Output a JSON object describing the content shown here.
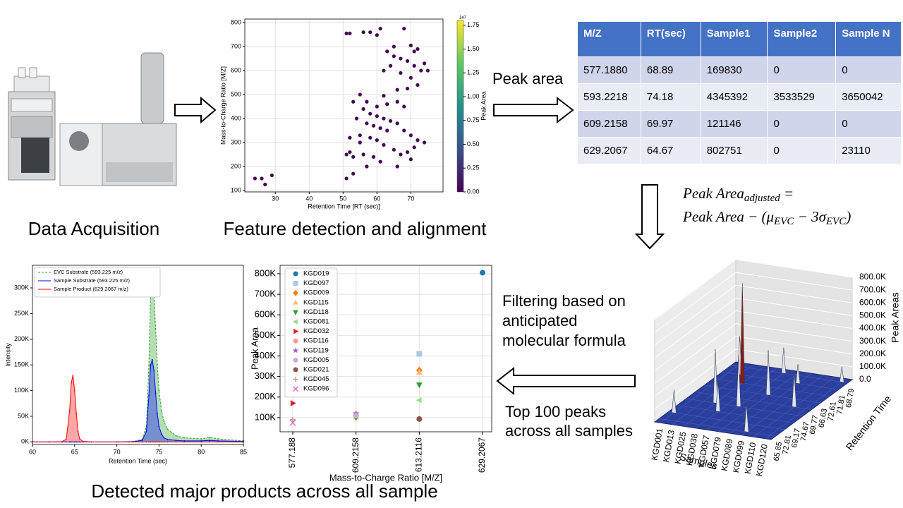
{
  "labels": {
    "data_acquisition": "Data Acquisition",
    "feature_detection": "Feature detection and alignment",
    "peak_area": "Peak area",
    "filtering": [
      "Filtering based on",
      "anticipated",
      "molecular formula"
    ],
    "top_peaks": [
      "Top 100 peaks",
      "across all samples"
    ],
    "detected": "Detected major products across all sample"
  },
  "formula": {
    "line1": [
      "Peak Area",
      "adjusted",
      " ="
    ],
    "line2": [
      "Peak Area − (μ",
      "EVC",
      " − 3σ",
      "EVC",
      ")"
    ]
  },
  "table": {
    "header": [
      "M/Z",
      "RT(sec)",
      "Sample1",
      "Sample2",
      "Sample N"
    ],
    "rows": [
      [
        "577.1880",
        "68.89",
        "169830",
        "0",
        "0"
      ],
      [
        "593.2218",
        "74.18",
        "4345392",
        "3533529",
        "3650042"
      ],
      [
        "609.2158",
        "69.97",
        "121146",
        "0",
        "0"
      ],
      [
        "629.2067",
        "64.67",
        "802751",
        "0",
        "23110"
      ]
    ]
  },
  "chart_data": [
    {
      "type": "scatter",
      "x_label": "Retention Time [RT (sec)]",
      "y_label": "Mass-to-Charge Ratio [M/Z]",
      "x": [
        24,
        26,
        27,
        29,
        51,
        52,
        56,
        58,
        60,
        61,
        68,
        65,
        70,
        72,
        71,
        63,
        65,
        67,
        69,
        71,
        74,
        73,
        75,
        64,
        62,
        67,
        70,
        72,
        66,
        69,
        62,
        55,
        57,
        60,
        63,
        66,
        68,
        53,
        56,
        58,
        60,
        62,
        64,
        54,
        57,
        59,
        61,
        63,
        66,
        68,
        70,
        72,
        74,
        55,
        58,
        60,
        62,
        65,
        67,
        69,
        71,
        52,
        51,
        53,
        56,
        59,
        61,
        57,
        66,
        70,
        53,
        51,
        55,
        52
      ],
      "y": [
        150,
        150,
        125,
        163,
        755,
        755,
        760,
        760,
        748,
        775,
        775,
        700,
        705,
        690,
        680,
        680,
        660,
        650,
        640,
        620,
        630,
        600,
        600,
        620,
        600,
        590,
        570,
        540,
        520,
        525,
        495,
        500,
        470,
        450,
        460,
        470,
        450,
        470,
        440,
        420,
        410,
        400,
        390,
        400,
        380,
        370,
        360,
        350,
        380,
        350,
        330,
        310,
        300,
        330,
        320,
        310,
        290,
        270,
        250,
        260,
        280,
        260,
        250,
        240,
        250,
        240,
        220,
        200,
        200,
        230,
        170,
        150,
        300,
        320
      ],
      "color": "#440154",
      "xlim": [
        21,
        79.5
      ],
      "xticks": [
        30,
        40,
        50,
        60,
        70
      ],
      "ylim": [
        94,
        815
      ],
      "yticks": [
        100,
        200,
        300,
        400,
        500,
        600,
        700,
        800
      ],
      "grid": true,
      "colorbar": {
        "label": "Peak Area",
        "scale_label": "1e7",
        "lim": [
          0,
          1.8
        ],
        "ticks": [
          {
            "value": 0,
            "label": "0.00"
          },
          {
            "value": 0.25,
            "label": "0.25"
          },
          {
            "value": 0.5,
            "label": "0.50"
          },
          {
            "value": 0.75,
            "label": "0.75"
          },
          {
            "value": 1,
            "label": "1.00"
          },
          {
            "value": 1.25,
            "label": "1.25"
          },
          {
            "value": 1.5,
            "label": "1.50"
          },
          {
            "value": 1.75,
            "label": "1.75"
          }
        ],
        "colors": [
          "#440154",
          "#3b528b",
          "#21918c",
          "#5ec962",
          "#fde725"
        ]
      }
    },
    {
      "type": "line",
      "x_label": "Retention Time (sec)",
      "y_label": "Intensity",
      "x": [
        60,
        62,
        63.5,
        64,
        64.4,
        64.6,
        64.8,
        65,
        65.2,
        65.4,
        65.6,
        66,
        67,
        70,
        72,
        73,
        73.5,
        73.8,
        74,
        74.2,
        74.4,
        74.6,
        74.8,
        75,
        75.3,
        75.6,
        76,
        77,
        78,
        80,
        81,
        82,
        85
      ],
      "series": [
        {
          "name": "EVC Substrate (593.225 m/z)",
          "color": "#2ca02c",
          "dashed": true,
          "values": [
            0,
            0,
            0,
            0,
            0,
            0,
            0,
            0,
            0,
            0,
            0,
            0,
            0,
            0,
            1000,
            5000,
            30000,
            150000,
            290000,
            325000,
            290000,
            220000,
            150000,
            100000,
            60000,
            40000,
            25000,
            12000,
            8000,
            6000,
            9000,
            6000,
            2000
          ]
        },
        {
          "name": "Sample Substrate (593.225 m/z)",
          "color": "#0000ff",
          "dashed": false,
          "values": [
            0,
            0,
            0,
            0,
            0,
            0,
            0,
            0,
            0,
            0,
            0,
            0,
            0,
            0,
            500,
            3000,
            20000,
            90000,
            150000,
            160000,
            140000,
            95000,
            55000,
            30000,
            15000,
            8000,
            5000,
            3000,
            2000,
            2000,
            3000,
            2000,
            1000
          ]
        },
        {
          "name": "Sample Product (629.2067 m/z)",
          "color": "#ff0000",
          "dashed": false,
          "values": [
            0,
            0,
            500,
            5000,
            60000,
            115000,
            130000,
            100000,
            55000,
            20000,
            6000,
            1000,
            0,
            0,
            0,
            0,
            0,
            0,
            0,
            0,
            0,
            0,
            0,
            0,
            0,
            0,
            0,
            0,
            0,
            0,
            0,
            0,
            0
          ]
        }
      ],
      "xlim": [
        60,
        85
      ],
      "xticks": [
        60,
        65,
        70,
        75,
        80,
        85
      ],
      "ylim": [
        -5000,
        344000
      ],
      "yticks": [
        {
          "value": 0,
          "label": "0K"
        },
        {
          "value": 50000,
          "label": "50K"
        },
        {
          "value": 100000,
          "label": "100K"
        },
        {
          "value": 150000,
          "label": "150K"
        },
        {
          "value": 200000,
          "label": "200K"
        },
        {
          "value": 250000,
          "label": "250K"
        },
        {
          "value": 300000,
          "label": "300K"
        }
      ],
      "grid": false,
      "legend": "upper left"
    },
    {
      "type": "category-scatter",
      "x_label": "Mass-to-Charge Ratio [M/Z]",
      "y_label": "Peak Area",
      "categories": [
        "577.188",
        "609.2158",
        "613.2116",
        "629.2067"
      ],
      "series": [
        {
          "name": "KGD019",
          "color": "#1f77b4",
          "marker": "circle",
          "values": [
            null,
            null,
            null,
            805000
          ]
        },
        {
          "name": "KGD097",
          "color": "#aec7e8",
          "marker": "square",
          "values": [
            null,
            null,
            410000,
            null
          ]
        },
        {
          "name": "KGD009",
          "color": "#ff7f0e",
          "marker": "diamond",
          "values": [
            null,
            null,
            330000,
            null
          ]
        },
        {
          "name": "KGD115",
          "color": "#ffbb78",
          "marker": "triangle-up",
          "values": [
            null,
            105000,
            320000,
            null
          ]
        },
        {
          "name": "KGD118",
          "color": "#2ca02c",
          "marker": "triangle-down",
          "values": [
            null,
            100000,
            260000,
            null
          ]
        },
        {
          "name": "KGD081",
          "color": "#98df8a",
          "marker": "triangle-left",
          "values": [
            null,
            null,
            185000,
            null
          ]
        },
        {
          "name": "KGD032",
          "color": "#d62728",
          "marker": "triangle-right",
          "values": [
            170000,
            null,
            null,
            null
          ]
        },
        {
          "name": "KGD116",
          "color": "#ff9896",
          "marker": "circle",
          "values": [
            null,
            115000,
            null,
            null
          ]
        },
        {
          "name": "KGD119",
          "color": "#9467bd",
          "marker": "star",
          "values": [
            null,
            120000,
            null,
            null
          ]
        },
        {
          "name": "KGD005",
          "color": "#c5b0d5",
          "marker": "circle",
          "values": [
            null,
            110000,
            null,
            null
          ]
        },
        {
          "name": "KGD021",
          "color": "#8c564b",
          "marker": "circle",
          "values": [
            null,
            null,
            93000,
            null
          ]
        },
        {
          "name": "KGD045",
          "color": "#c49c94",
          "marker": "plus",
          "values": [
            90000,
            null,
            null,
            null
          ]
        },
        {
          "name": "KGD096",
          "color": "#e377c2",
          "marker": "x",
          "values": [
            75000,
            null,
            null,
            null
          ]
        }
      ],
      "ylim": [
        31000,
        841000
      ],
      "yticks": [
        {
          "value": 100000,
          "label": "100K"
        },
        {
          "value": 200000,
          "label": "200K"
        },
        {
          "value": 300000,
          "label": "300K"
        },
        {
          "value": 400000,
          "label": "400K"
        },
        {
          "value": 500000,
          "label": "500K"
        },
        {
          "value": 600000,
          "label": "600K"
        },
        {
          "value": 700000,
          "label": "700K"
        },
        {
          "value": 800000,
          "label": "800K"
        }
      ],
      "grid": true,
      "legend": "upper left"
    },
    {
      "type": "surface3d",
      "x_label": "Samples",
      "y_label": "Retention Time",
      "z_label": "Peak Areas",
      "samples": [
        "KGD001",
        "KGD013",
        "KGD025",
        "KGD038",
        "KGD057",
        "KGD079",
        "KGD089",
        "KGD099",
        "KGD110",
        "KGD120"
      ],
      "retention_times": [
        "65.85",
        "72.81",
        "69.17",
        "74.67",
        "69.77",
        "66.63",
        "72.61",
        "71.81",
        "68.79"
      ],
      "zlim": [
        0,
        800000
      ],
      "zticks": [
        {
          "value": 0,
          "label": "0.0"
        },
        {
          "value": 100000,
          "label": "100.0K"
        },
        {
          "value": 200000,
          "label": "200.0K"
        },
        {
          "value": 300000,
          "label": "300.0K"
        },
        {
          "value": 400000,
          "label": "400.0K"
        },
        {
          "value": 500000,
          "label": "500.0K"
        },
        {
          "value": 600000,
          "label": "600.0K"
        },
        {
          "value": 700000,
          "label": "700.0K"
        },
        {
          "value": 800000,
          "label": "800.0K"
        }
      ],
      "surface_color": "#2b3f9e",
      "peaks": {
        "sample": [
          "KGD013",
          "KGD025",
          "KGD025",
          "KGD038",
          "KGD057",
          "KGD079",
          "KGD089",
          "KGD099",
          "KGD110",
          "KGD001",
          "KGD057",
          "KGD120"
        ],
        "rt": [
          "71.81",
          "72.61",
          "74.67",
          "69.17",
          "68.79",
          "66.63",
          "71.81",
          "65.85",
          "69.77",
          "72.81",
          "74.67",
          "68.79"
        ],
        "values": [
          300000,
          780000,
          420000,
          250000,
          200000,
          350000,
          150000,
          220000,
          280000,
          180000,
          400000,
          120000
        ],
        "colors": [
          "#dce4f5",
          "#8b1a1a",
          "#dce4f5",
          "#dce4f5",
          "#dce4f5",
          "#dce4f5",
          "#dce4f5",
          "#dce4f5",
          "#dce4f5",
          "#dce4f5",
          "#dce4f5",
          "#dce4f5"
        ]
      }
    }
  ]
}
